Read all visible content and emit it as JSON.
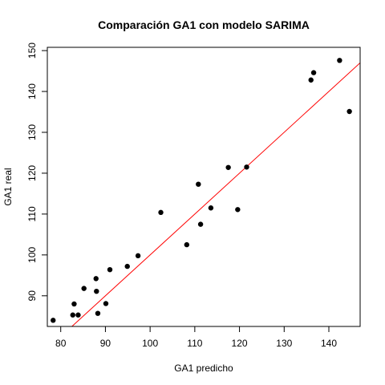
{
  "chart_data": {
    "type": "scatter",
    "title": "Comparación GA1 con modelo SARIMA",
    "xlabel": "GA1 predicho",
    "ylabel": "GA1 real",
    "xlim": [
      77,
      147
    ],
    "ylim": [
      82.5,
      150.8
    ],
    "x_ticks": [
      80,
      90,
      100,
      110,
      120,
      130,
      140
    ],
    "y_ticks": [
      90,
      100,
      110,
      120,
      130,
      140,
      150
    ],
    "x_tick_labels": [
      "80",
      "90",
      "100",
      "110",
      "120",
      "130",
      "140"
    ],
    "y_tick_labels": [
      "90",
      "100",
      "110",
      "120",
      "130",
      "140",
      "150"
    ],
    "grid": false,
    "point_color": "#000000",
    "reference_line": {
      "type": "identity",
      "slope": 1,
      "intercept": 0,
      "color": "#ff0000"
    },
    "points": [
      {
        "x": 78.3,
        "y": 84.0
      },
      {
        "x": 82.7,
        "y": 85.3
      },
      {
        "x": 83.0,
        "y": 88.0
      },
      {
        "x": 83.9,
        "y": 85.3
      },
      {
        "x": 85.2,
        "y": 91.8
      },
      {
        "x": 87.9,
        "y": 94.2
      },
      {
        "x": 88.0,
        "y": 91.1
      },
      {
        "x": 88.3,
        "y": 85.7
      },
      {
        "x": 90.1,
        "y": 88.1
      },
      {
        "x": 91.0,
        "y": 96.4
      },
      {
        "x": 94.9,
        "y": 97.2
      },
      {
        "x": 97.3,
        "y": 99.8
      },
      {
        "x": 102.4,
        "y": 110.4
      },
      {
        "x": 108.2,
        "y": 102.5
      },
      {
        "x": 110.8,
        "y": 117.3
      },
      {
        "x": 111.3,
        "y": 107.5
      },
      {
        "x": 113.6,
        "y": 111.5
      },
      {
        "x": 117.5,
        "y": 121.4
      },
      {
        "x": 119.6,
        "y": 111.1
      },
      {
        "x": 121.6,
        "y": 121.5
      },
      {
        "x": 136.0,
        "y": 142.8
      },
      {
        "x": 136.6,
        "y": 144.6
      },
      {
        "x": 142.4,
        "y": 147.6
      },
      {
        "x": 144.6,
        "y": 135.1
      }
    ]
  }
}
